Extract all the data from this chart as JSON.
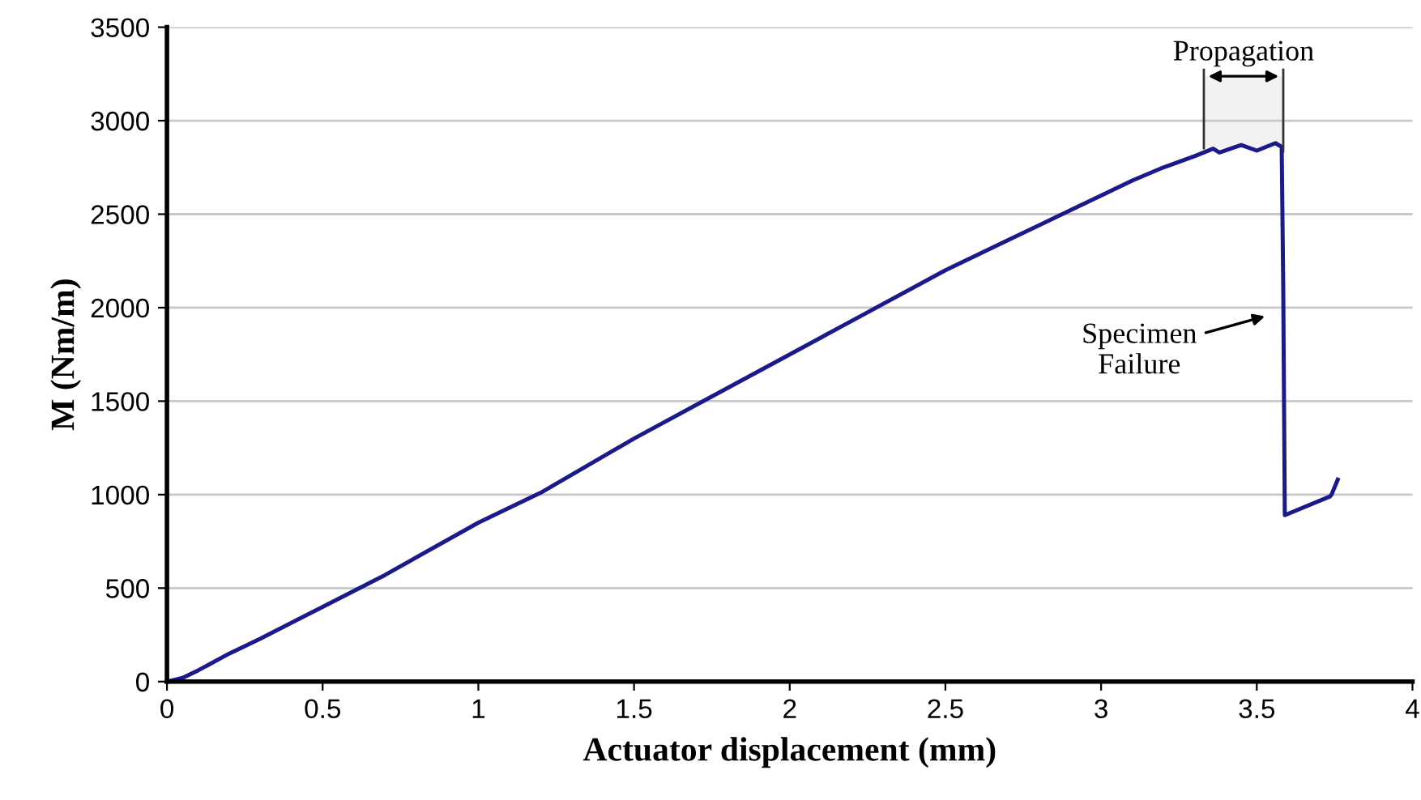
{
  "chart_data": {
    "type": "line",
    "xlabel": "Actuator displacement (mm)",
    "ylabel": "M (Nm/m)",
    "x": [
      0,
      0.05,
      0.1,
      0.2,
      0.3,
      0.5,
      0.7,
      1,
      1.2,
      1.5,
      1.7,
      2,
      2.2,
      2.5,
      2.7,
      3,
      3.1,
      3.2,
      3.3,
      3.36,
      3.38,
      3.45,
      3.5,
      3.56,
      3.58,
      3.585,
      3.59,
      3.735,
      3.74,
      3.76
    ],
    "series": [
      {
        "color": "#1a1a8c",
        "values": [
          0,
          20,
          60,
          150,
          230,
          400,
          570,
          850,
          1010,
          1300,
          1480,
          1750,
          1930,
          2200,
          2360,
          2600,
          2680,
          2750,
          2810,
          2850,
          2830,
          2870,
          2840,
          2880,
          2860,
          2100,
          890,
          990,
          1000,
          1080
        ]
      }
    ],
    "xlim": [
      0,
      4
    ],
    "xticks": [
      0,
      0.5,
      1,
      1.5,
      2,
      2.5,
      3,
      3.5,
      4
    ],
    "ylim": [
      0,
      3500
    ],
    "yticks": [
      0,
      500,
      1000,
      1500,
      2000,
      2500,
      3000,
      3500
    ],
    "grid": "y",
    "marker": "none",
    "line_style": "solid",
    "legend": false,
    "bands": [
      {
        "axis": "x",
        "from": 3.33,
        "to": 3.585,
        "label": "Propagation",
        "color": "#f2f2f2"
      }
    ],
    "annotations": [
      "Specimen\nFailure"
    ]
  }
}
